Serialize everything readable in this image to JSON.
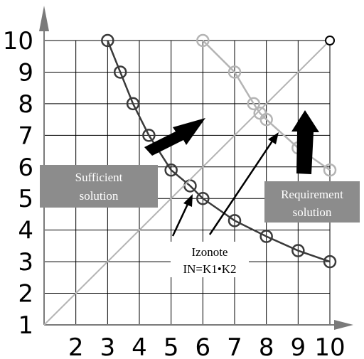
{
  "chart_data": {
    "type": "line",
    "xlim": [
      1,
      10
    ],
    "ylim": [
      1,
      10
    ],
    "x_ticks": [
      "2",
      "3",
      "4",
      "5",
      "6",
      "7",
      "8",
      "9",
      "10"
    ],
    "y_ticks": [
      "10",
      "9",
      "8",
      "7",
      "6",
      "5",
      "4",
      "3",
      "2",
      "1"
    ],
    "grid": true,
    "series": [
      {
        "color": "#3a3a3a",
        "points": [
          [
            3,
            10
          ],
          [
            3.4,
            9
          ],
          [
            3.8,
            8
          ],
          [
            4.3,
            7
          ],
          [
            5,
            5.9
          ],
          [
            5.6,
            5.4
          ],
          [
            6,
            5
          ],
          [
            7,
            4.3
          ],
          [
            8,
            3.8
          ],
          [
            9,
            3.35
          ],
          [
            10,
            3
          ]
        ]
      },
      {
        "color": "#b4b4b4",
        "points": [
          [
            6,
            10
          ],
          [
            7,
            9
          ],
          [
            7.6,
            8
          ],
          [
            7.8,
            7.7
          ],
          [
            8,
            7.5
          ],
          [
            9,
            6.6
          ],
          [
            10,
            5.9
          ]
        ]
      },
      {
        "color": "#b4b4b4",
        "points": [
          [
            1,
            1
          ],
          [
            10,
            10
          ]
        ]
      }
    ],
    "open_point": [
      10,
      10
    ],
    "labels": {
      "sufficient": [
        "Sufficient",
        "solution"
      ],
      "requirement": [
        "Requirement",
        "solution"
      ],
      "izonote": [
        "Izonote",
        "IN=K1•K2"
      ]
    },
    "colors": {
      "dark_curve": "#3a3a3a",
      "light_curve": "#b4b4b4",
      "label_box": "#8c8c8c",
      "axis": "#7a7a7a"
    }
  }
}
